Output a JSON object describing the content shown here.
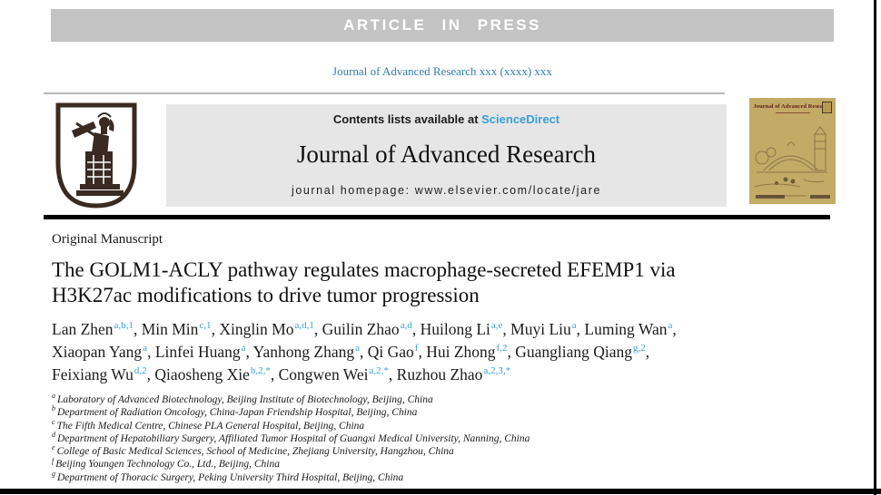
{
  "banner": {
    "text": "ARTICLE IN PRESS"
  },
  "citation": {
    "text": "Journal of Advanced Research xxx (xxxx) xxx"
  },
  "masthead": {
    "contents_prefix": "Contents lists available at ",
    "sciencedirect": "ScienceDirect",
    "journal_title": "Journal of Advanced Research",
    "homepage": "journal homepage: www.elsevier.com/locate/jare"
  },
  "cover": {
    "title": "Journal of Advanced Research"
  },
  "article": {
    "type_label": "Original Manuscript",
    "title_line1": "The GOLM1-ACLY pathway regulates macrophage-secreted EFEMP1 via",
    "title_line2": "H3K27ac modifications to drive tumor progression"
  },
  "authors": {
    "lines": [
      {
        "authors": [
          {
            "name": "Lan Zhen",
            "sup": "a,b,1"
          },
          {
            "name": "Min Min",
            "sup": "c,1"
          },
          {
            "name": "Xinglin Mo",
            "sup": "a,d,1"
          },
          {
            "name": "Guilin Zhao",
            "sup": "a,d"
          },
          {
            "name": "Huilong Li",
            "sup": "a,e"
          },
          {
            "name": "Muyi Liu",
            "sup": "a"
          },
          {
            "name": "Luming Wan",
            "sup": "a"
          }
        ],
        "trailing": ","
      },
      {
        "authors": [
          {
            "name": "Xiaopan Yang",
            "sup": "a"
          },
          {
            "name": "Linfei Huang",
            "sup": "a"
          },
          {
            "name": "Yanhong Zhang",
            "sup": "a"
          },
          {
            "name": "Qi Gao",
            "sup": "f"
          },
          {
            "name": "Hui Zhong",
            "sup": "f,2"
          },
          {
            "name": "Guangliang Qiang",
            "sup": "g,2"
          }
        ],
        "trailing": ","
      },
      {
        "authors": [
          {
            "name": "Feixiang Wu",
            "sup": "d,2"
          },
          {
            "name": "Qiaosheng Xie",
            "sup": "b,2,*"
          },
          {
            "name": "Congwen Wei",
            "sup": "a,2,*"
          },
          {
            "name": "Ruzhou Zhao",
            "sup": "a,2,3,*"
          }
        ],
        "trailing": ""
      }
    ]
  },
  "affiliations": [
    {
      "sup": "a",
      "text": "Laboratory of Advanced Biotechnology, Beijing Institute of Biotechnology, Beijing, China"
    },
    {
      "sup": "b",
      "text": "Department of Radiation Oncology, China-Japan Friendship Hospital, Beijing, China"
    },
    {
      "sup": "c",
      "text": "The Fifth Medical Centre, Chinese PLA General Hospital, Beijing, China"
    },
    {
      "sup": "d",
      "text": "Department of Hepatobiliary Surgery, Affiliated Tumor Hospital of Guangxi Medical University, Nanning, China"
    },
    {
      "sup": "e",
      "text": "College of Basic Medical Sciences, School of Medicine, Zhejiang University, Hangzhou, China"
    },
    {
      "sup": "f",
      "text": "Beijing Youngen Technology Co., Ltd., Beijing, China"
    },
    {
      "sup": "g",
      "text": "Department of Thoracic Surgery, Peking University Third Hospital, Beijing, China"
    }
  ],
  "colors": {
    "banner-bg": "#c3c3c3",
    "banner-text": "#ffffff",
    "link-blue": "#38a0d5",
    "citation-blue": "#2f7eae",
    "masthead-bg": "#e6e6e6",
    "rule-black": "#000000",
    "logo-brown": "#3a2a22",
    "cover-bg": "#c4aa67",
    "cover-accent": "#5e2214"
  }
}
